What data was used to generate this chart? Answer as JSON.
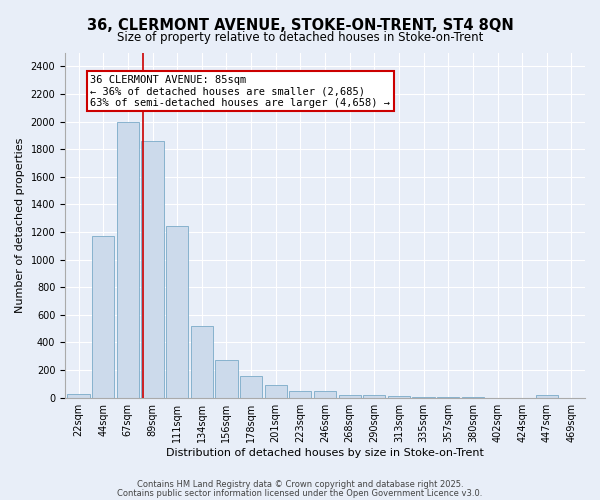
{
  "title_line1": "36, CLERMONT AVENUE, STOKE-ON-TRENT, ST4 8QN",
  "title_line2": "Size of property relative to detached houses in Stoke-on-Trent",
  "xlabel": "Distribution of detached houses by size in Stoke-on-Trent",
  "ylabel": "Number of detached properties",
  "bar_labels": [
    "22sqm",
    "44sqm",
    "67sqm",
    "89sqm",
    "111sqm",
    "134sqm",
    "156sqm",
    "178sqm",
    "201sqm",
    "223sqm",
    "246sqm",
    "268sqm",
    "290sqm",
    "313sqm",
    "335sqm",
    "357sqm",
    "380sqm",
    "402sqm",
    "424sqm",
    "447sqm",
    "469sqm"
  ],
  "bar_values": [
    28,
    1170,
    2000,
    1860,
    1245,
    520,
    275,
    155,
    90,
    45,
    45,
    18,
    22,
    10,
    5,
    3,
    2,
    1,
    1,
    20,
    1
  ],
  "bar_color": "#ccdaeb",
  "bar_edge_color": "#7aaac8",
  "annotation_line1": "36 CLERMONT AVENUE: 85sqm",
  "annotation_line2": "← 36% of detached houses are smaller (2,685)",
  "annotation_line3": "63% of semi-detached houses are larger (4,658) →",
  "vline_color": "#cc0000",
  "vline_x": 2.62,
  "ylim": [
    0,
    2500
  ],
  "yticks": [
    0,
    200,
    400,
    600,
    800,
    1000,
    1200,
    1400,
    1600,
    1800,
    2000,
    2200,
    2400
  ],
  "footer1": "Contains HM Land Registry data © Crown copyright and database right 2025.",
  "footer2": "Contains public sector information licensed under the Open Government Licence v3.0.",
  "background_color": "#e8eef8",
  "plot_background": "#e8eef8",
  "title1_fontsize": 10.5,
  "title2_fontsize": 8.5,
  "xlabel_fontsize": 8,
  "ylabel_fontsize": 8,
  "tick_fontsize": 7,
  "annotation_fontsize": 7.5,
  "footer_fontsize": 6
}
